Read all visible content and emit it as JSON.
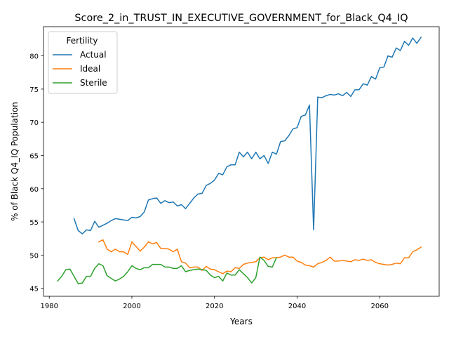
{
  "chart_data": {
    "type": "line",
    "title": "Score_2_in_TRUST_IN_EXECUTIVE_GOVERNMENT_for_Black_Q4_IQ",
    "xlabel": "Years",
    "ylabel": "% of Black Q4_IQ Population",
    "xlim": [
      1978.6,
      2074.4
    ],
    "ylim": [
      43.8,
      84.4
    ],
    "xticks": [
      1980,
      2000,
      2020,
      2040,
      2060
    ],
    "yticks": [
      45,
      50,
      55,
      60,
      65,
      70,
      75,
      80
    ],
    "legend": {
      "title": "Fertility",
      "position": "top-left"
    },
    "grid": false,
    "series": [
      {
        "name": "Actual",
        "color": "#1f77b4",
        "x": [
          1986,
          1987,
          1988,
          1989,
          1990,
          1991,
          1992,
          1993,
          1994,
          1995,
          1996,
          1997,
          1998,
          1999,
          2000,
          2001,
          2002,
          2003,
          2004,
          2005,
          2006,
          2007,
          2008,
          2009,
          2010,
          2011,
          2012,
          2013,
          2014,
          2015,
          2016,
          2017,
          2018,
          2019,
          2020,
          2021,
          2022,
          2023,
          2024,
          2025,
          2026,
          2027,
          2028,
          2029,
          2030,
          2031,
          2032,
          2033,
          2034,
          2035,
          2036,
          2037,
          2038,
          2039,
          2040,
          2041,
          2042,
          2043,
          2044,
          2045,
          2046,
          2047,
          2048,
          2049,
          2050,
          2051,
          2052,
          2053,
          2054,
          2055,
          2056,
          2057,
          2058,
          2059,
          2060,
          2061,
          2062,
          2063,
          2064,
          2065,
          2066,
          2067,
          2068,
          2069,
          2070
        ],
        "values": [
          55.5,
          53.7,
          53.2,
          53.8,
          53.7,
          55.1,
          54.2,
          54.5,
          54.8,
          55.2,
          55.5,
          55.4,
          55.3,
          55.2,
          55.7,
          55.6,
          55.8,
          56.5,
          58.3,
          58.5,
          58.6,
          57.8,
          58.2,
          57.9,
          58.0,
          57.4,
          57.6,
          57.0,
          57.8,
          58.6,
          59.2,
          59.3,
          60.5,
          60.8,
          61.3,
          62.3,
          62.1,
          63.3,
          63.6,
          63.6,
          65.5,
          64.8,
          65.5,
          64.5,
          65.5,
          64.5,
          65.0,
          63.8,
          65.5,
          65.2,
          67.1,
          67.2,
          68.0,
          69.0,
          69.2,
          70.9,
          71.1,
          72.6,
          53.8,
          73.8,
          73.7,
          74.0,
          74.2,
          74.1,
          74.3,
          74.0,
          74.5,
          73.9,
          74.9,
          74.9,
          75.8,
          75.6,
          76.9,
          76.5,
          78.2,
          78.3,
          80.0,
          79.8,
          81.2,
          80.8,
          82.2,
          81.6,
          82.7,
          81.9,
          82.8
        ]
      },
      {
        "name": "Ideal",
        "color": "#ff7f0e",
        "x": [
          1992,
          1993,
          1994,
          1995,
          1996,
          1997,
          1998,
          1999,
          2000,
          2001,
          2002,
          2003,
          2004,
          2005,
          2006,
          2007,
          2008,
          2009,
          2010,
          2011,
          2012,
          2013,
          2014,
          2015,
          2016,
          2017,
          2018,
          2019,
          2020,
          2021,
          2022,
          2023,
          2024,
          2025,
          2026,
          2027,
          2028,
          2029,
          2030,
          2031,
          2032,
          2033,
          2034,
          2035,
          2036,
          2037,
          2038,
          2039,
          2040,
          2041,
          2042,
          2043,
          2044,
          2045,
          2046,
          2047,
          2048,
          2049,
          2050,
          2051,
          2052,
          2053,
          2054,
          2055,
          2056,
          2057,
          2058,
          2059,
          2060,
          2061,
          2062,
          2063,
          2064,
          2065,
          2066,
          2067,
          2068,
          2069,
          2070
        ],
        "values": [
          52.0,
          52.3,
          50.9,
          50.5,
          50.9,
          50.5,
          50.5,
          50.1,
          52.0,
          51.3,
          50.6,
          51.2,
          52.0,
          51.7,
          51.9,
          51.0,
          51.0,
          50.9,
          50.5,
          50.9,
          49.0,
          48.8,
          48.1,
          48.2,
          48.2,
          47.7,
          48.3,
          47.9,
          47.8,
          47.5,
          47.2,
          47.6,
          47.5,
          48.1,
          48.0,
          48.6,
          48.8,
          48.9,
          49.0,
          49.6,
          49.7,
          49.3,
          49.6,
          49.6,
          49.7,
          50.0,
          49.7,
          49.7,
          49.1,
          48.9,
          48.5,
          48.4,
          48.2,
          48.7,
          48.9,
          49.2,
          49.7,
          49.1,
          49.1,
          49.2,
          49.1,
          49.0,
          49.3,
          49.2,
          49.4,
          49.2,
          49.3,
          48.9,
          48.7,
          48.6,
          48.5,
          48.6,
          48.8,
          48.7,
          49.6,
          49.6,
          50.5,
          50.8,
          51.2
        ]
      },
      {
        "name": "Sterile",
        "color": "#2ca02c",
        "x": [
          1982,
          1983,
          1984,
          1985,
          1986,
          1987,
          1988,
          1989,
          1990,
          1991,
          1992,
          1993,
          1994,
          1995,
          1996,
          1997,
          1998,
          1999,
          2000,
          2001,
          2002,
          2003,
          2004,
          2005,
          2006,
          2007,
          2008,
          2009,
          2010,
          2011,
          2012,
          2013,
          2014,
          2015,
          2016,
          2017,
          2018,
          2019,
          2020,
          2021,
          2022,
          2023,
          2024,
          2025,
          2026,
          2027,
          2028,
          2029,
          2030,
          2031,
          2032,
          2033,
          2034,
          2035
        ],
        "values": [
          46.1,
          46.8,
          47.8,
          47.9,
          46.8,
          45.7,
          45.8,
          46.8,
          46.8,
          48.0,
          48.7,
          48.4,
          46.9,
          46.5,
          46.1,
          46.4,
          46.8,
          47.5,
          48.4,
          48.0,
          47.8,
          48.1,
          48.1,
          48.6,
          48.6,
          48.6,
          48.2,
          48.2,
          48.0,
          48.0,
          48.4,
          47.5,
          47.7,
          47.8,
          47.9,
          47.8,
          47.7,
          47.0,
          46.6,
          46.8,
          46.1,
          47.3,
          47.0,
          47.0,
          47.8,
          47.2,
          46.6,
          45.8,
          46.6,
          49.7,
          49.2,
          48.3,
          48.2,
          49.6
        ]
      }
    ]
  }
}
